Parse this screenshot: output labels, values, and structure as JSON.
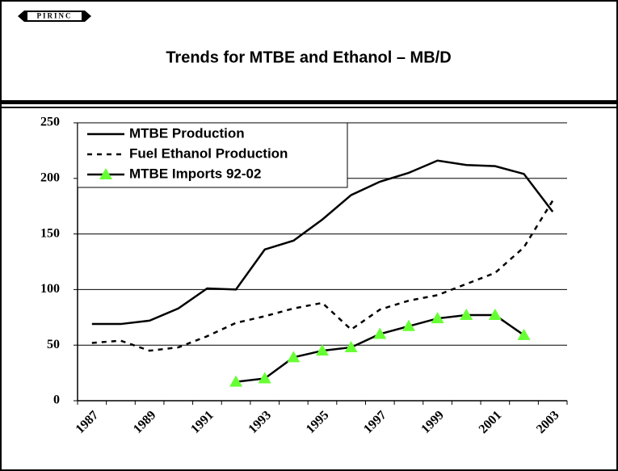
{
  "logo": "PIRINC",
  "chart_data": {
    "type": "line",
    "title": "Trends for MTBE and Ethanol – MB/D",
    "categories": [
      "1987",
      null,
      "1989",
      null,
      "1991",
      null,
      "1993",
      null,
      "1995",
      null,
      "1997",
      null,
      "1999",
      null,
      "2001",
      null,
      "2003"
    ],
    "series": [
      {
        "name": "MTBE Production",
        "color": "#000000",
        "style": "solid",
        "values": [
          69,
          69,
          72,
          83,
          101,
          100,
          136,
          144,
          163,
          185,
          197,
          205,
          216,
          212,
          211,
          204,
          170
        ]
      },
      {
        "name": "Fuel Ethanol Production",
        "color": "#000000",
        "style": "dashed",
        "values": [
          52,
          54,
          45,
          48,
          58,
          70,
          76,
          83,
          88,
          64,
          82,
          90,
          95,
          105,
          115,
          138,
          180
        ]
      },
      {
        "name": "MTBE Imports 92-02",
        "color": "#000000",
        "style": "solid",
        "marker": "triangle",
        "marker_color": "#66ff33",
        "values": [
          null,
          null,
          null,
          null,
          null,
          17,
          20,
          39,
          45,
          48,
          60,
          67,
          74,
          77,
          77,
          59,
          null
        ]
      }
    ],
    "ylim": [
      0,
      250
    ],
    "yticks": [
      0,
      50,
      100,
      150,
      200,
      250
    ],
    "grid": true,
    "legend": "top-left"
  }
}
